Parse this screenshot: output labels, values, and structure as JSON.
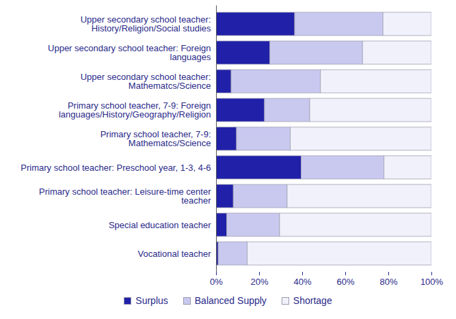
{
  "chart_data": {
    "type": "bar",
    "orientation": "horizontal",
    "stacked": true,
    "legend": "bottom",
    "categories": [
      "Upper secondary school teacher:\nHistory/Religion/Social studies",
      "Upper secondary school teacher: Foreign\nlanguages",
      "Upper secondary school teacher:\nMathematcs/Science",
      "Primary school teacher, 7-9: Foreign\nlanguages/History/Geography/Religion",
      "Primary school teacher, 7-9:\nMathematcs/Science",
      "Primary school teacher: Preschool year, 1-3, 4-6",
      "Primary school teacher: Leisure-time center\nteacher",
      "Special education teacher",
      "Vocational teacher"
    ],
    "series": [
      {
        "name": "Surplus",
        "color": "#2020a8",
        "values": [
          36.5,
          25,
          7,
          22.5,
          9.5,
          39.5,
          8,
          5,
          1
        ]
      },
      {
        "name": "Balanced Supply",
        "color": "#c9c9f0",
        "values": [
          41,
          43,
          41.5,
          21,
          25,
          38.5,
          25,
          24.5,
          13.5
        ]
      },
      {
        "name": "Shortage",
        "color": "#f1f1fb",
        "values": [
          22.5,
          32,
          51.5,
          56.5,
          65.5,
          22,
          67,
          70.5,
          85.5
        ]
      }
    ],
    "xlim": [
      0,
      100
    ],
    "xticks": [
      {
        "value": 0,
        "label": "0%"
      },
      {
        "value": 20,
        "label": "20%"
      },
      {
        "value": 40,
        "label": "40%"
      },
      {
        "value": 60,
        "label": "60%"
      },
      {
        "value": 80,
        "label": "80%"
      },
      {
        "value": 100,
        "label": "100%"
      }
    ],
    "grid": false
  }
}
